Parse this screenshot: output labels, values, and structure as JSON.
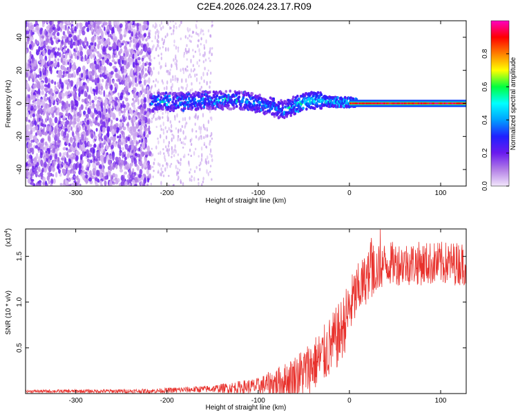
{
  "title": "C2E4.2026.024.23.17.R09",
  "chart_data": [
    {
      "type": "heatmap",
      "name": "spectrogram",
      "xlabel": "Height of straight line (km)",
      "ylabel": "Frequency (Hz)",
      "xlim": [
        -355,
        128
      ],
      "ylim": [
        -50,
        50
      ],
      "xticks": [
        -300,
        -200,
        -100,
        0,
        100
      ],
      "xtick_labels": [
        "-300",
        "-200",
        "-100",
        "0",
        "100"
      ],
      "yticks": [
        -40,
        -20,
        0,
        20,
        40
      ],
      "ytick_labels": [
        "-40",
        "-20",
        "0",
        "20",
        "40"
      ],
      "colorbar": {
        "label": "Normalized spectral amplitude",
        "range": [
          0,
          1
        ],
        "ticks": [
          0.0,
          0.2,
          0.4,
          0.6,
          0.8
        ],
        "tick_labels": [
          "0.0",
          "0.2",
          "0.4",
          "0.6",
          "0.8"
        ],
        "colors": [
          "#f2e6fb",
          "#b27ee6",
          "#6a1aee",
          "#2020ff",
          "#00a0ff",
          "#00ffff",
          "#00ff40",
          "#ffff00",
          "#ff8000",
          "#ff0000",
          "#ff00c0"
        ]
      },
      "regions": [
        {
          "x_range": [
            -355,
            -218
          ],
          "description": "broadband noise",
          "amplitude": 0.1
        },
        {
          "x_range": [
            -218,
            -150
          ],
          "description": "sparse noise",
          "amplitude": 0.05
        },
        {
          "x_range": [
            -218,
            10
          ],
          "description": "signal band near 0 Hz",
          "amplitude": 0.35
        },
        {
          "x_range": [
            0,
            128
          ],
          "description": "narrow carrier line at 0 Hz",
          "amplitude": 1.0
        }
      ],
      "band_center_hz": [
        {
          "x": -215,
          "y": 1
        },
        {
          "x": -180,
          "y": 1
        },
        {
          "x": -150,
          "y": 2
        },
        {
          "x": -120,
          "y": 2
        },
        {
          "x": -100,
          "y": 0
        },
        {
          "x": -80,
          "y": -3
        },
        {
          "x": -70,
          "y": -4
        },
        {
          "x": -55,
          "y": 0
        },
        {
          "x": -40,
          "y": 2
        },
        {
          "x": -20,
          "y": 1
        },
        {
          "x": 0,
          "y": 0.5
        },
        {
          "x": 128,
          "y": 0
        }
      ]
    },
    {
      "type": "line",
      "name": "snr",
      "xlabel": "Height of straight line (km)",
      "ylabel": "SNR (10 * v/v)",
      "multiplier_label": "(x10",
      "multiplier_exp": "4",
      "xlim": [
        -355,
        128
      ],
      "ylim": [
        0,
        1.8
      ],
      "xticks": [
        -300,
        -200,
        -100,
        0,
        100
      ],
      "xtick_labels": [
        "-300",
        "-200",
        "-100",
        "0",
        "100"
      ],
      "yticks": [
        0.5,
        1.0,
        1.5
      ],
      "ytick_labels": [
        "0.5",
        "1.0",
        "1.5"
      ],
      "color": "#e8312c",
      "envelope": [
        {
          "x": -355,
          "base": 0.02,
          "amp": 0.02
        },
        {
          "x": -220,
          "base": 0.02,
          "amp": 0.03
        },
        {
          "x": -150,
          "base": 0.04,
          "amp": 0.05
        },
        {
          "x": -100,
          "base": 0.05,
          "amp": 0.12
        },
        {
          "x": -70,
          "base": 0.08,
          "amp": 0.25
        },
        {
          "x": -50,
          "base": 0.15,
          "amp": 0.35
        },
        {
          "x": -30,
          "base": 0.3,
          "amp": 0.4
        },
        {
          "x": -10,
          "base": 0.55,
          "amp": 0.45
        },
        {
          "x": 5,
          "base": 0.95,
          "amp": 0.4
        },
        {
          "x": 20,
          "base": 1.2,
          "amp": 0.35
        },
        {
          "x": 40,
          "base": 1.35,
          "amp": 0.3
        },
        {
          "x": 80,
          "base": 1.35,
          "amp": 0.3
        },
        {
          "x": 128,
          "base": 1.35,
          "amp": 0.3
        }
      ]
    }
  ]
}
